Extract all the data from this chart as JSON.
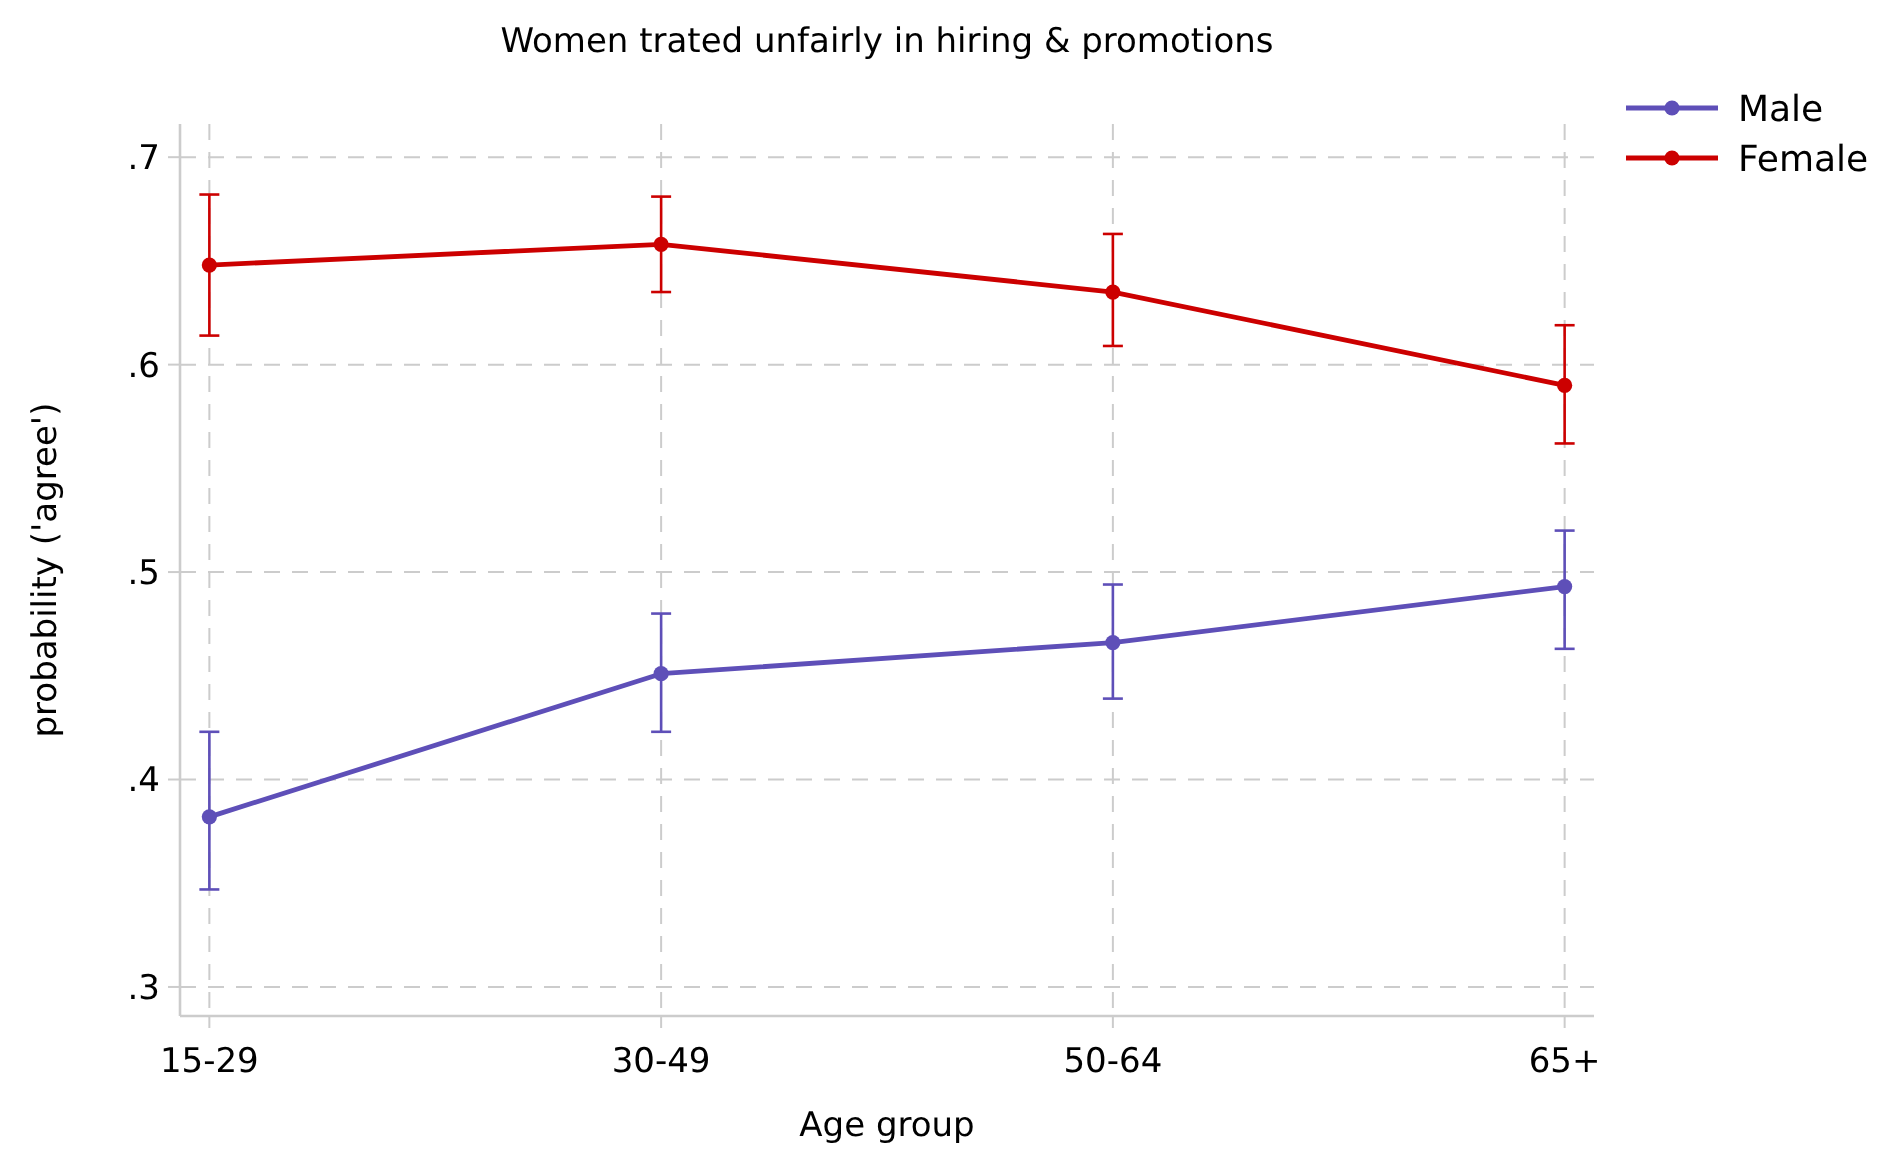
{
  "chart_data": {
    "type": "line",
    "title": "Women trated unfairly in hiring & promotions",
    "xlabel": "Age group",
    "ylabel": "probability ('agree')",
    "categories": [
      "15-29",
      "30-49",
      "50-64",
      "65+"
    ],
    "series": [
      {
        "name": "Male",
        "color": "#5e4fb8",
        "values": [
          0.382,
          0.451,
          0.466,
          0.493
        ],
        "errors": [
          [
            0.347,
            0.423
          ],
          [
            0.423,
            0.48
          ],
          [
            0.439,
            0.494
          ],
          [
            0.463,
            0.52
          ]
        ]
      },
      {
        "name": "Female",
        "color": "#cc0000",
        "values": [
          0.648,
          0.658,
          0.635,
          0.59
        ],
        "errors": [
          [
            0.614,
            0.682
          ],
          [
            0.635,
            0.681
          ],
          [
            0.609,
            0.663
          ],
          [
            0.562,
            0.619
          ]
        ]
      }
    ],
    "ylim": [
      0.286,
      0.716
    ],
    "yticks": [
      {
        "value": 0.3,
        "label": ".3"
      },
      {
        "value": 0.4,
        "label": ".4"
      },
      {
        "value": 0.5,
        "label": ".5"
      },
      {
        "value": 0.6,
        "label": ".6"
      },
      {
        "value": 0.7,
        "label": ".7"
      }
    ],
    "grid": true,
    "legend": "top right",
    "marker": "circle",
    "line_style": "solid"
  }
}
